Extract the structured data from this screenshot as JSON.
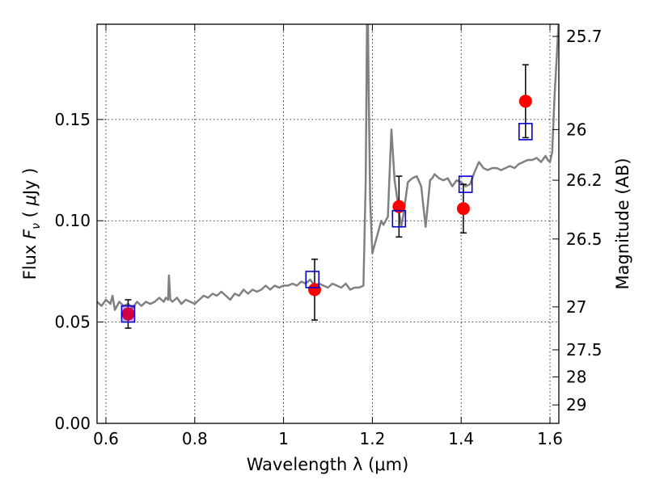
{
  "chart_data": {
    "type": "scatter",
    "xlabel": "Wavelength  λ (μm)",
    "ylabel_parts": [
      "Flux  ",
      "F",
      "ν",
      "  ( ",
      "μ",
      "Jy )"
    ],
    "ylabel_right": "Magnitude (AB)",
    "xlim": [
      0.58,
      1.62
    ],
    "ylim": [
      0.0,
      0.197
    ],
    "x_ticks": [
      0.6,
      0.8,
      1.0,
      1.2,
      1.4,
      1.6
    ],
    "x_tick_labels": [
      "0.6",
      "0.8",
      "1",
      "1.2",
      "1.4",
      "1.6"
    ],
    "y_ticks": [
      0.0,
      0.05,
      0.1,
      0.15
    ],
    "y_tick_labels": [
      "0.00",
      "0.05",
      "0.10",
      "0.15"
    ],
    "right_ticks": [
      {
        "label": "25.7",
        "flux": 0.191
      },
      {
        "label": "26",
        "flux": 0.145
      },
      {
        "label": "26.2",
        "flux": 0.12
      },
      {
        "label": "26.5",
        "flux": 0.091
      },
      {
        "label": "27",
        "flux": 0.0575
      },
      {
        "label": "27.5",
        "flux": 0.0363
      },
      {
        "label": "28",
        "flux": 0.0229
      },
      {
        "label": "29",
        "flux": 0.0091
      }
    ],
    "grid": true,
    "colors": {
      "model": "#808080",
      "observed": "#ff0000",
      "model_points": "#0000cc",
      "errorbar": "#000000"
    },
    "series": [
      {
        "kind": "line",
        "x": [
          0.58,
          0.59,
          0.6,
          0.61,
          0.615,
          0.62,
          0.63,
          0.64,
          0.65,
          0.66,
          0.67,
          0.68,
          0.69,
          0.7,
          0.71,
          0.72,
          0.73,
          0.735,
          0.74,
          0.742,
          0.745,
          0.75,
          0.76,
          0.77,
          0.78,
          0.79,
          0.8,
          0.81,
          0.82,
          0.83,
          0.84,
          0.85,
          0.86,
          0.87,
          0.88,
          0.89,
          0.9,
          0.91,
          0.92,
          0.93,
          0.94,
          0.95,
          0.96,
          0.97,
          0.98,
          0.99,
          1.0,
          1.01,
          1.02,
          1.03,
          1.04,
          1.05,
          1.06,
          1.07,
          1.08,
          1.09,
          1.1,
          1.11,
          1.12,
          1.13,
          1.14,
          1.15,
          1.16,
          1.17,
          1.18,
          1.185,
          1.188,
          1.19,
          1.192,
          1.195,
          1.2,
          1.21,
          1.22,
          1.225,
          1.23,
          1.235,
          1.24,
          1.243,
          1.25,
          1.26,
          1.265,
          1.27,
          1.28,
          1.29,
          1.3,
          1.31,
          1.32,
          1.33,
          1.335,
          1.34,
          1.35,
          1.36,
          1.37,
          1.38,
          1.39,
          1.4,
          1.41,
          1.42,
          1.43,
          1.44,
          1.45,
          1.46,
          1.47,
          1.48,
          1.49,
          1.5,
          1.51,
          1.52,
          1.53,
          1.54,
          1.55,
          1.56,
          1.57,
          1.58,
          1.59,
          1.595,
          1.6,
          1.605,
          1.61,
          1.62
        ],
        "y": [
          0.06,
          0.058,
          0.061,
          0.059,
          0.063,
          0.056,
          0.06,
          0.058,
          0.059,
          0.057,
          0.06,
          0.058,
          0.06,
          0.059,
          0.06,
          0.062,
          0.06,
          0.062,
          0.061,
          0.073,
          0.061,
          0.06,
          0.062,
          0.059,
          0.061,
          0.06,
          0.059,
          0.061,
          0.063,
          0.062,
          0.064,
          0.063,
          0.065,
          0.063,
          0.061,
          0.064,
          0.063,
          0.066,
          0.064,
          0.066,
          0.065,
          0.066,
          0.068,
          0.066,
          0.068,
          0.067,
          0.068,
          0.068,
          0.069,
          0.068,
          0.07,
          0.069,
          0.071,
          0.068,
          0.069,
          0.068,
          0.067,
          0.069,
          0.068,
          0.067,
          0.069,
          0.066,
          0.067,
          0.067,
          0.068,
          0.12,
          0.198,
          0.198,
          0.16,
          0.11,
          0.084,
          0.092,
          0.1,
          0.098,
          0.1,
          0.102,
          0.13,
          0.145,
          0.12,
          0.105,
          0.097,
          0.103,
          0.119,
          0.121,
          0.122,
          0.117,
          0.097,
          0.12,
          0.121,
          0.123,
          0.121,
          0.12,
          0.121,
          0.117,
          0.12,
          0.119,
          0.117,
          0.118,
          0.124,
          0.129,
          0.126,
          0.125,
          0.126,
          0.126,
          0.125,
          0.126,
          0.127,
          0.126,
          0.128,
          0.129,
          0.13,
          0.13,
          0.131,
          0.129,
          0.132,
          0.13,
          0.129,
          0.134,
          0.16,
          0.2
        ],
        "name": ""
      },
      {
        "kind": "errorbar",
        "x": [
          0.65,
          1.07,
          1.26,
          1.405,
          1.545
        ],
        "y": [
          0.054,
          0.066,
          0.107,
          0.106,
          0.159
        ],
        "yerr": [
          0.007,
          0.015,
          0.015,
          0.012,
          0.018
        ],
        "name": ""
      },
      {
        "kind": "squares",
        "x": [
          0.65,
          1.065,
          1.26,
          1.41,
          1.545
        ],
        "y": [
          0.054,
          0.071,
          0.101,
          0.118,
          0.144
        ],
        "name": ""
      }
    ]
  }
}
